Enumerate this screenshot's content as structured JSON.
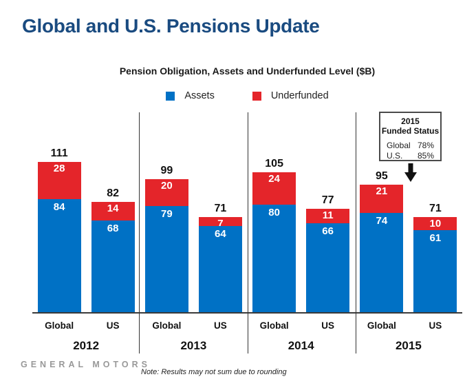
{
  "page": {
    "title": "Global and U.S. Pensions Update",
    "title_color": "#1A4B80"
  },
  "chart_data": {
    "type": "bar",
    "stacked": true,
    "title": "Pension Obligation, Assets and Underfunded Level ($B)",
    "unit": "$B",
    "legend_position": "top-center",
    "grid": false,
    "ylim": [
      0,
      120
    ],
    "legend": [
      {
        "label": "Assets",
        "color": "#0071C5",
        "key": "assets"
      },
      {
        "label": "Underfunded",
        "color": "#E4252A",
        "key": "underfunded"
      }
    ],
    "groups": [
      {
        "year": "2012",
        "bars": [
          {
            "category": "Global",
            "total": 111,
            "assets": 84,
            "underfunded": 28
          },
          {
            "category": "US",
            "total": 82,
            "assets": 68,
            "underfunded": 14
          }
        ]
      },
      {
        "year": "2013",
        "bars": [
          {
            "category": "Global",
            "total": 99,
            "assets": 79,
            "underfunded": 20
          },
          {
            "category": "US",
            "total": 71,
            "assets": 64,
            "underfunded": 7
          }
        ]
      },
      {
        "year": "2014",
        "bars": [
          {
            "category": "Global",
            "total": 105,
            "assets": 80,
            "underfunded": 24
          },
          {
            "category": "US",
            "total": 77,
            "assets": 66,
            "underfunded": 11
          }
        ]
      },
      {
        "year": "2015",
        "bars": [
          {
            "category": "Global",
            "total": 95,
            "assets": 74,
            "underfunded": 21
          },
          {
            "category": "US",
            "total": 71,
            "assets": 61,
            "underfunded": 10
          }
        ]
      }
    ],
    "annotation": {
      "title_line1": "2015",
      "title_line2": "Funded Status",
      "rows": [
        {
          "label": "Global",
          "value": "78%"
        },
        {
          "label": "U.S.",
          "value": "85%"
        }
      ]
    }
  },
  "footer": {
    "brand": "GENERAL MOTORS",
    "note": "Note: Results may not sum due to rounding"
  }
}
